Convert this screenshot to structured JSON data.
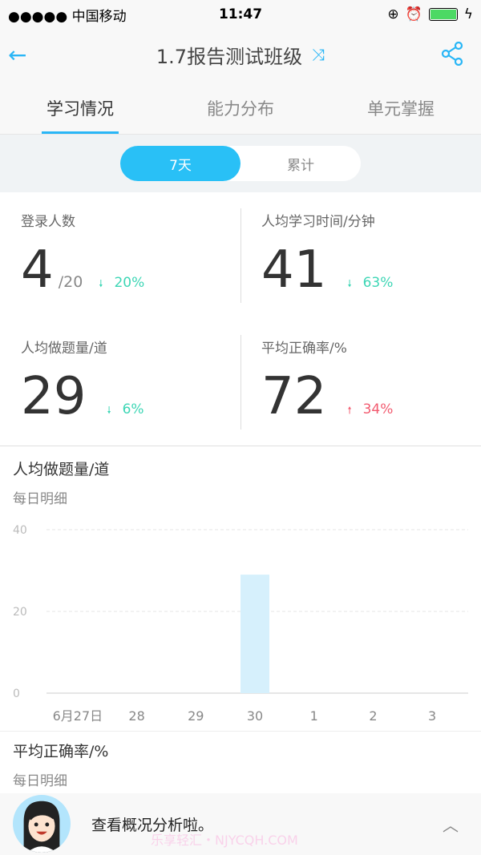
{
  "status_bar": {
    "carrier": "●●●●● 中国移动",
    "time": "11:47"
  },
  "nav": {
    "title": "1.7报告测试班级"
  },
  "tabs": [
    {
      "label": "学习情况",
      "active": true
    },
    {
      "label": "能力分布"
    },
    {
      "label": "单元掌握"
    }
  ],
  "segment": [
    {
      "label": "7天",
      "active": true
    },
    {
      "label": "累计"
    }
  ],
  "stats": [
    {
      "label": "登录人数",
      "value": "4",
      "sub": "/20",
      "trend": "20%",
      "direction": "down"
    },
    {
      "label": "人均学习时间/分钟",
      "value": "41",
      "sub": "",
      "trend": "63%",
      "direction": "down"
    },
    {
      "label": "人均做题量/道",
      "value": "29",
      "sub": "",
      "trend": "6%",
      "direction": "down"
    },
    {
      "label": "平均正确率/%",
      "value": "72",
      "sub": "",
      "trend": "34%",
      "direction": "up"
    }
  ],
  "colors": {
    "accent": "#29b6f6",
    "down": "#3dd6b5",
    "up": "#f25a6f",
    "bar": "#d6f0fc"
  },
  "chart_section": {
    "title": "人均做题量/道",
    "subtitle": "每日明细"
  },
  "chart_data": {
    "type": "bar",
    "categories": [
      "6月27日",
      "28",
      "29",
      "30",
      "1",
      "2",
      "3"
    ],
    "values": [
      0,
      0,
      0,
      29,
      0,
      0,
      0
    ],
    "ylim": [
      0,
      40
    ],
    "yticks": [
      0,
      20,
      40
    ],
    "grid": true
  },
  "next_section": {
    "title": "平均正确率/%",
    "subtitle": "每日明细"
  },
  "bubble": {
    "text": "查看概况分析啦。"
  },
  "watermark": "乐享轻汇・NJYCQH.COM"
}
